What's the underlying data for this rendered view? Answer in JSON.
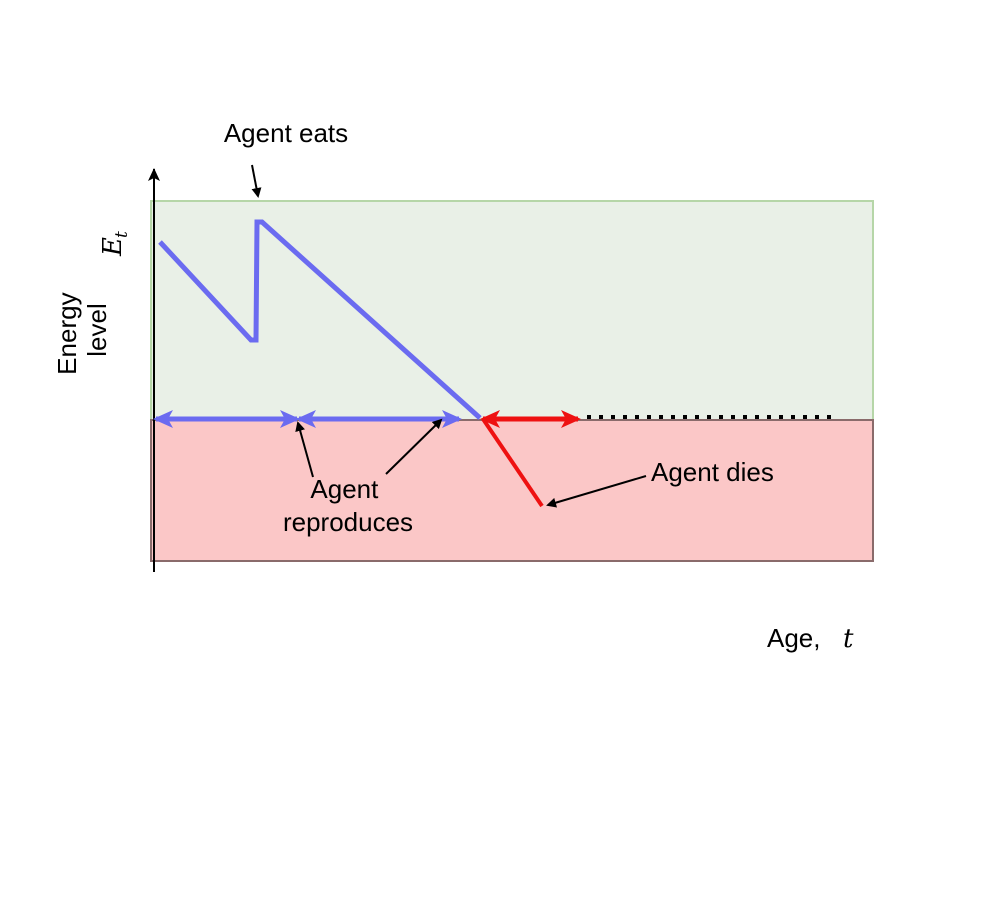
{
  "labels": {
    "agent_eats": "Agent eats",
    "agent_reproduces_line1": "Agent",
    "agent_reproduces_line2": "reproduces",
    "agent_dies": "Agent dies",
    "y_axis_line1": "Energy",
    "y_axis_line2": "level",
    "y_symbol_main": "E",
    "y_symbol_sub": "t",
    "x_axis_text": "Age,",
    "x_symbol": "t"
  },
  "colors": {
    "alive_region": "#e9f0e7",
    "alive_border": "#b6d6a8",
    "dead_region": "#fbc7c7",
    "dead_border": "#8a6b6b",
    "energy_trace": "#6b6bf0",
    "death_trace": "#ee1111",
    "axis": "#000000"
  }
}
